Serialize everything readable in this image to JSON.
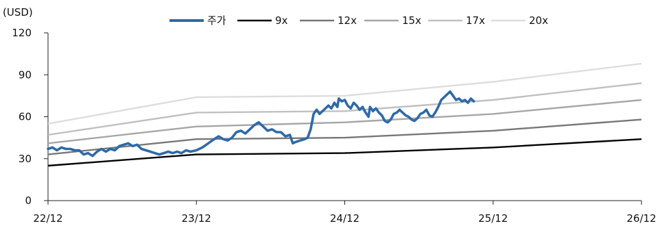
{
  "chart_data": {
    "type": "line",
    "unit_label": "(USD)",
    "ylim": [
      0,
      120
    ],
    "y_ticks": [
      0,
      30,
      60,
      90,
      120
    ],
    "x_ticks": [
      "22/12",
      "23/12",
      "24/12",
      "25/12",
      "26/12"
    ],
    "grid": false,
    "legend_position": "top",
    "price_series": {
      "name": "주가",
      "color": "#2e6aa8",
      "points": [
        [
          0.0,
          37
        ],
        [
          0.03,
          38
        ],
        [
          0.06,
          36
        ],
        [
          0.09,
          38
        ],
        [
          0.12,
          37
        ],
        [
          0.15,
          37
        ],
        [
          0.18,
          36
        ],
        [
          0.21,
          36
        ],
        [
          0.24,
          33
        ],
        [
          0.27,
          34
        ],
        [
          0.3,
          32
        ],
        [
          0.33,
          35
        ],
        [
          0.36,
          37
        ],
        [
          0.39,
          35
        ],
        [
          0.42,
          37
        ],
        [
          0.45,
          36
        ],
        [
          0.48,
          39
        ],
        [
          0.51,
          40
        ],
        [
          0.54,
          41
        ],
        [
          0.57,
          39
        ],
        [
          0.6,
          40
        ],
        [
          0.63,
          37
        ],
        [
          0.66,
          36
        ],
        [
          0.69,
          35
        ],
        [
          0.72,
          34
        ],
        [
          0.75,
          33
        ],
        [
          0.78,
          34
        ],
        [
          0.81,
          35
        ],
        [
          0.84,
          34
        ],
        [
          0.87,
          35
        ],
        [
          0.9,
          34
        ],
        [
          0.93,
          36
        ],
        [
          0.96,
          35
        ],
        [
          1.0,
          36
        ],
        [
          1.04,
          38
        ],
        [
          1.08,
          41
        ],
        [
          1.12,
          44
        ],
        [
          1.15,
          46
        ],
        [
          1.18,
          44
        ],
        [
          1.21,
          43
        ],
        [
          1.24,
          45
        ],
        [
          1.27,
          49
        ],
        [
          1.3,
          50
        ],
        [
          1.33,
          48
        ],
        [
          1.36,
          51
        ],
        [
          1.39,
          54
        ],
        [
          1.42,
          56
        ],
        [
          1.45,
          53
        ],
        [
          1.48,
          50
        ],
        [
          1.51,
          51
        ],
        [
          1.54,
          49
        ],
        [
          1.57,
          49
        ],
        [
          1.6,
          46
        ],
        [
          1.63,
          47
        ],
        [
          1.65,
          41
        ],
        [
          1.67,
          42
        ],
        [
          1.7,
          43
        ],
        [
          1.73,
          44
        ],
        [
          1.75,
          45
        ],
        [
          1.77,
          51
        ],
        [
          1.79,
          62
        ],
        [
          1.81,
          65
        ],
        [
          1.83,
          62
        ],
        [
          1.85,
          64
        ],
        [
          1.87,
          66
        ],
        [
          1.89,
          68
        ],
        [
          1.91,
          66
        ],
        [
          1.93,
          70
        ],
        [
          1.95,
          67
        ],
        [
          1.96,
          73
        ],
        [
          1.98,
          71
        ],
        [
          2.0,
          72
        ],
        [
          2.02,
          68
        ],
        [
          2.04,
          66
        ],
        [
          2.06,
          70
        ],
        [
          2.08,
          68
        ],
        [
          2.1,
          65
        ],
        [
          2.12,
          67
        ],
        [
          2.14,
          63
        ],
        [
          2.16,
          60
        ],
        [
          2.17,
          67
        ],
        [
          2.19,
          64
        ],
        [
          2.21,
          66
        ],
        [
          2.23,
          63
        ],
        [
          2.25,
          61
        ],
        [
          2.27,
          57
        ],
        [
          2.29,
          56
        ],
        [
          2.31,
          58
        ],
        [
          2.33,
          62
        ],
        [
          2.35,
          63
        ],
        [
          2.37,
          65
        ],
        [
          2.39,
          63
        ],
        [
          2.41,
          61
        ],
        [
          2.43,
          60
        ],
        [
          2.45,
          58
        ],
        [
          2.47,
          57
        ],
        [
          2.49,
          59
        ],
        [
          2.51,
          62
        ],
        [
          2.53,
          63
        ],
        [
          2.55,
          65
        ],
        [
          2.57,
          61
        ],
        [
          2.59,
          60
        ],
        [
          2.61,
          63
        ],
        [
          2.63,
          67
        ],
        [
          2.65,
          72
        ],
        [
          2.67,
          74
        ],
        [
          2.69,
          76
        ],
        [
          2.71,
          78
        ],
        [
          2.73,
          75
        ],
        [
          2.75,
          72
        ],
        [
          2.77,
          73
        ],
        [
          2.79,
          71
        ],
        [
          2.81,
          72
        ],
        [
          2.83,
          70
        ],
        [
          2.85,
          73
        ],
        [
          2.87,
          71
        ]
      ]
    },
    "band_series": [
      {
        "name": "9x",
        "color": "#000000",
        "points": [
          [
            0,
            25
          ],
          [
            1,
            33
          ],
          [
            2,
            34
          ],
          [
            3,
            38
          ],
          [
            4,
            44
          ]
        ]
      },
      {
        "name": "12x",
        "color": "#777777",
        "points": [
          [
            0,
            33
          ],
          [
            1,
            44
          ],
          [
            2,
            45
          ],
          [
            3,
            50
          ],
          [
            4,
            58
          ]
        ]
      },
      {
        "name": "15x",
        "color": "#a6a6a6",
        "points": [
          [
            0,
            41
          ],
          [
            1,
            53
          ],
          [
            2,
            56
          ],
          [
            3,
            62
          ],
          [
            4,
            72
          ]
        ]
      },
      {
        "name": "17x",
        "color": "#c0c0c0",
        "points": [
          [
            0,
            47
          ],
          [
            1,
            63
          ],
          [
            2,
            64
          ],
          [
            3,
            72
          ],
          [
            4,
            84
          ]
        ]
      },
      {
        "name": "20x",
        "color": "#dddddd",
        "points": [
          [
            0,
            55
          ],
          [
            1,
            74
          ],
          [
            2,
            75
          ],
          [
            3,
            85
          ],
          [
            4,
            98
          ]
        ]
      }
    ]
  }
}
